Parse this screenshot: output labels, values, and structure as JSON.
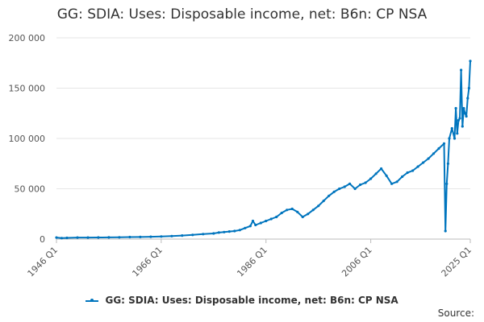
{
  "chart_data": {
    "type": "line",
    "title": "GG: SDIA: Uses: Disposable income, net: B6n: CP NSA",
    "source_label": "Source:",
    "series_color": "#0075BE",
    "ylim": [
      0,
      200000
    ],
    "yticks": [
      {
        "value": 0,
        "label": "0"
      },
      {
        "value": 50000,
        "label": "50 000"
      },
      {
        "value": 100000,
        "label": "100 000"
      },
      {
        "value": 150000,
        "label": "150 000"
      },
      {
        "value": 200000,
        "label": "200 000"
      }
    ],
    "xlim": [
      1946.0,
      2025.0
    ],
    "xticks": [
      {
        "value": 1946.0,
        "label": "1946 Q1"
      },
      {
        "value": 1966.0,
        "label": "1966 Q1"
      },
      {
        "value": 1986.0,
        "label": "1986 Q1"
      },
      {
        "value": 2006.0,
        "label": "2006 Q1"
      },
      {
        "value": 2025.0,
        "label": "2025 Q1"
      }
    ],
    "series": [
      {
        "name": "GG: SDIA: Uses: Disposable income, net: B6n: CP NSA",
        "x": [
          1946.0,
          1947.0,
          1948.0,
          1950.0,
          1952.0,
          1954.0,
          1956.0,
          1958.0,
          1960.0,
          1962.0,
          1964.0,
          1966.0,
          1968.0,
          1970.0,
          1972.0,
          1974.0,
          1976.0,
          1977.0,
          1978.0,
          1979.0,
          1980.0,
          1981.0,
          1982.0,
          1983.0,
          1983.5,
          1984.0,
          1985.0,
          1986.0,
          1987.0,
          1988.0,
          1989.0,
          1990.0,
          1991.0,
          1992.0,
          1993.0,
          1994.0,
          1995.0,
          1996.0,
          1997.0,
          1998.0,
          1999.0,
          2000.0,
          2001.0,
          2002.0,
          2003.0,
          2004.0,
          2005.0,
          2006.0,
          2007.0,
          2008.0,
          2009.0,
          2010.0,
          2011.0,
          2012.0,
          2013.0,
          2014.0,
          2015.0,
          2016.0,
          2017.0,
          2018.0,
          2019.0,
          2020.0,
          2020.25,
          2020.5,
          2020.75,
          2021.0,
          2021.5,
          2022.0,
          2022.25,
          2022.5,
          2022.75,
          2023.0,
          2023.25,
          2023.5,
          2023.75,
          2024.0,
          2024.25,
          2024.5,
          2024.75,
          2025.0
        ],
        "values": [
          1500,
          1000,
          1200,
          1500,
          1500,
          1600,
          1700,
          1800,
          2000,
          2100,
          2300,
          2600,
          3000,
          3500,
          4200,
          5000,
          5600,
          6500,
          7000,
          7500,
          8000,
          9000,
          11000,
          13000,
          18000,
          14000,
          16000,
          18000,
          20000,
          22000,
          26000,
          29000,
          30000,
          27000,
          22000,
          25000,
          29000,
          33000,
          38000,
          43000,
          47000,
          50000,
          52000,
          55000,
          50000,
          54000,
          56000,
          60000,
          65000,
          70000,
          63000,
          55000,
          57000,
          62000,
          66000,
          68000,
          72000,
          76000,
          80000,
          85000,
          90000,
          95000,
          8000,
          55000,
          75000,
          100000,
          110000,
          100000,
          130000,
          105000,
          118000,
          120000,
          168000,
          112000,
          130000,
          125000,
          122000,
          140000,
          150000,
          177000
        ]
      }
    ]
  }
}
